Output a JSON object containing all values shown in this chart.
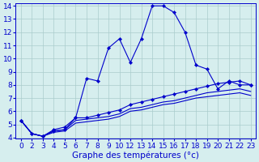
{
  "xlabel": "Graphe des températures (°c)",
  "x_labels": [
    "0",
    "2",
    "3",
    "4",
    "5",
    "6",
    "7",
    "8",
    "9",
    "10",
    "12",
    "13",
    "14",
    "15",
    "16",
    "17",
    "18",
    "19",
    "20",
    "21",
    "22",
    "23"
  ],
  "line1_y": [
    5.3,
    4.3,
    4.1,
    4.5,
    4.6,
    5.5,
    8.5,
    8.3,
    10.8,
    11.5,
    9.7,
    11.5,
    14.0,
    14.0,
    13.5,
    12.0,
    9.5,
    9.2,
    7.7,
    8.3,
    8.0,
    8.0
  ],
  "line2_y": [
    5.3,
    4.3,
    4.1,
    4.6,
    4.8,
    5.5,
    5.5,
    5.7,
    5.9,
    6.1,
    6.5,
    6.7,
    6.9,
    7.1,
    7.3,
    7.5,
    7.7,
    7.9,
    8.1,
    8.2,
    8.3,
    8.0
  ],
  "line3_y": [
    5.3,
    4.3,
    4.1,
    4.5,
    4.6,
    5.3,
    5.4,
    5.5,
    5.6,
    5.8,
    6.2,
    6.3,
    6.5,
    6.7,
    6.8,
    7.0,
    7.2,
    7.4,
    7.5,
    7.6,
    7.7,
    7.5
  ],
  "line4_y": [
    5.3,
    4.3,
    4.1,
    4.4,
    4.5,
    5.1,
    5.2,
    5.3,
    5.4,
    5.6,
    6.0,
    6.1,
    6.3,
    6.5,
    6.6,
    6.8,
    7.0,
    7.1,
    7.2,
    7.3,
    7.4,
    7.2
  ],
  "line_color": "#0000cc",
  "bg_color": "#d6eeee",
  "grid_color": "#aacccc",
  "ylim_min": 4,
  "ylim_max": 14,
  "yticks": [
    4,
    5,
    6,
    7,
    8,
    9,
    10,
    11,
    12,
    13,
    14
  ],
  "tick_fontsize": 6.5,
  "xlabel_fontsize": 7.5
}
